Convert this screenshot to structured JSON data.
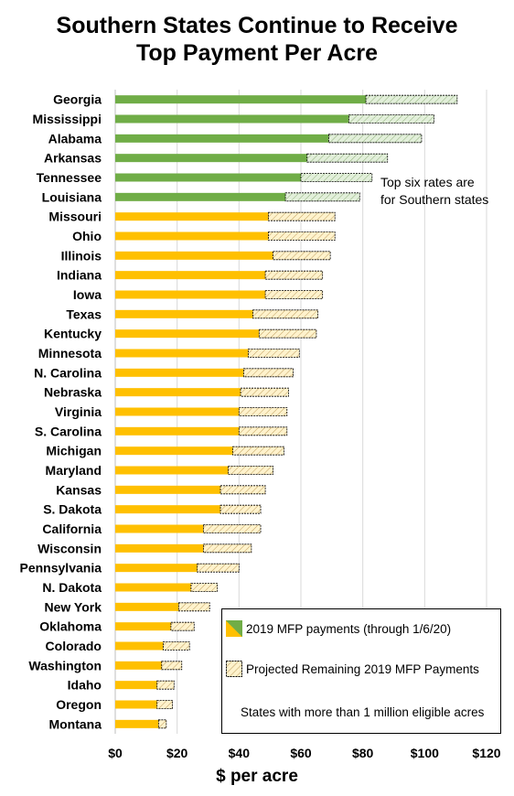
{
  "title_line1": "Southern States Continue to Receive",
  "title_line2": "Top Payment Per Acre",
  "annotation_line1": "Top six rates are",
  "annotation_line2": "for Southern states",
  "legend": {
    "paid_label": "2019 MFP payments (through 1/6/20)",
    "projected_label": "Projected Remaining 2019 MFP Payments",
    "note": "States with more than 1 million eligible acres"
  },
  "colors": {
    "southern": "#70AD47",
    "other": "#FFC000",
    "projected_fill": "#FFF2CC",
    "southern_projected_fill": "#E2EFDA",
    "grid": "#D9D9D9"
  },
  "chart_data": {
    "type": "bar",
    "orientation": "horizontal",
    "stacked": true,
    "title": "Southern States Continue to Receive Top Payment Per Acre",
    "xlabel": "$ per acre",
    "xlim": [
      0,
      120
    ],
    "xticks": [
      "$0",
      "$20",
      "$40",
      "$60",
      "$80",
      "$100",
      "$120"
    ],
    "grid": true,
    "legend_position": "bottom-right",
    "categories": [
      "Georgia",
      "Mississippi",
      "Alabama",
      "Arkansas",
      "Tennessee",
      "Louisiana",
      "Missouri",
      "Ohio",
      "Illinois",
      "Indiana",
      "Iowa",
      "Texas",
      "Kentucky",
      "Minnesota",
      "N. Carolina",
      "Nebraska",
      "Virginia",
      "S. Carolina",
      "Michigan",
      "Maryland",
      "Kansas",
      "S. Dakota",
      "California",
      "Wisconsin",
      "Pennsylvania",
      "N. Dakota",
      "New York",
      "Oklahoma",
      "Colorado",
      "Washington",
      "Idaho",
      "Oregon",
      "Montana"
    ],
    "southern": [
      true,
      true,
      true,
      true,
      true,
      true,
      false,
      false,
      false,
      false,
      false,
      false,
      false,
      false,
      false,
      false,
      false,
      false,
      false,
      false,
      false,
      false,
      false,
      false,
      false,
      false,
      false,
      false,
      false,
      false,
      false,
      false,
      false
    ],
    "series": [
      {
        "name": "2019 MFP payments (through 1/6/20)",
        "values": [
          81,
          75.5,
          69,
          62,
          60,
          55,
          49.5,
          49.5,
          51,
          48.5,
          48.5,
          44.5,
          46.5,
          43,
          41.5,
          40.5,
          40,
          40,
          38,
          36.5,
          34,
          34,
          28.5,
          28.5,
          26.5,
          24.5,
          20.5,
          18,
          15.5,
          15,
          13.5,
          13.5,
          14
        ]
      },
      {
        "name": "Projected Remaining 2019 MFP Payments",
        "values": [
          29.5,
          27.5,
          30,
          26,
          23,
          24,
          21.5,
          21.5,
          18.5,
          18.5,
          18.5,
          21,
          18.5,
          16.5,
          16,
          15.5,
          15.5,
          15.5,
          16.5,
          14.5,
          14.5,
          13,
          18.5,
          15.5,
          13.5,
          8.5,
          10,
          7.5,
          8.5,
          6.5,
          5.5,
          5,
          2.5
        ]
      }
    ]
  }
}
